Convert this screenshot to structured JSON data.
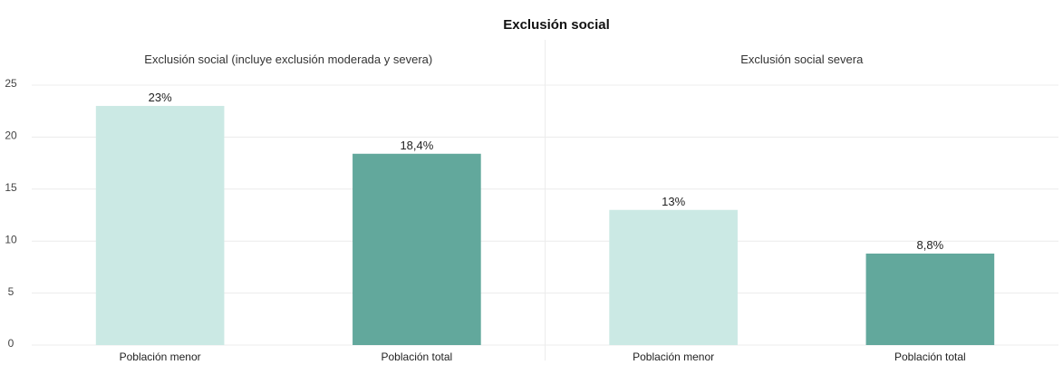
{
  "chart_data": {
    "type": "bar",
    "title": "Exclusión social",
    "xlabel": "",
    "ylabel": "",
    "ylim": [
      0,
      25
    ],
    "yticks": [
      0,
      5,
      10,
      15,
      20,
      25
    ],
    "grid": true,
    "legend": "none",
    "colors": {
      "Población menor": "#cbe9e4",
      "Población total": "#62a89c"
    },
    "panels": [
      {
        "title": "Exclusión social (incluye exclusión moderada y severa)",
        "categories": [
          "Población menor",
          "Población total"
        ],
        "values": [
          23,
          18.4
        ],
        "labels": [
          "23%",
          "18,4%"
        ]
      },
      {
        "title": "Exclusión social severa",
        "categories": [
          "Población menor",
          "Población total"
        ],
        "values": [
          13,
          8.8
        ],
        "labels": [
          "13%",
          "8,8%"
        ]
      }
    ]
  }
}
